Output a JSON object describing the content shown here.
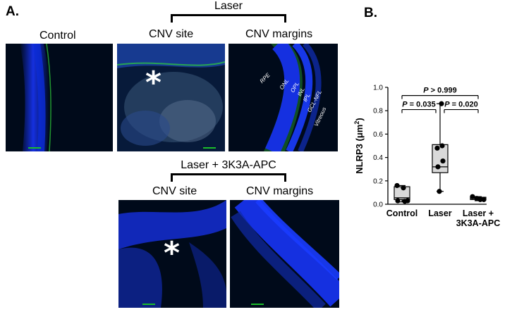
{
  "panel_a": {
    "letter": "A.",
    "control_label": "Control",
    "laser_group": {
      "title": "Laser",
      "site_label": "CNV site",
      "margins_label": "CNV margins",
      "star": "*",
      "layers": [
        "RPE",
        "ONL",
        "OPL",
        "INL",
        "IPL",
        "GCL-NFL",
        "Vitreous"
      ]
    },
    "apc_group": {
      "title": "Laser + 3K3A-APC",
      "site_label": "CNV site",
      "margins_label": "CNV margins",
      "star": "*"
    },
    "colors": {
      "nucleus_stain": "#1a3cff",
      "nlrp3_stain": "#2fd13a",
      "background": "#000a1a"
    }
  },
  "panel_b": {
    "letter": "B."
  },
  "chart_data": {
    "type": "box",
    "ylabel": "NLRP3 (μm",
    "ylabel_sup": "2",
    "ylabel_tail": ")",
    "ylim": [
      0,
      1.0
    ],
    "yticks": [
      "0.0",
      "0.2",
      "0.4",
      "0.6",
      "0.8",
      "1.0"
    ],
    "ytick_values": [
      0,
      0.2,
      0.4,
      0.6,
      0.8,
      1.0
    ],
    "categories": [
      "Control",
      "Laser",
      "Laser +\n3K3A-APC"
    ],
    "category_lines": [
      [
        "Control"
      ],
      [
        "Laser"
      ],
      [
        "Laser +",
        "3K3A-APC"
      ]
    ],
    "boxes": [
      {
        "min": 0.02,
        "q1": 0.04,
        "median": 0.055,
        "q3": 0.15,
        "max": 0.16
      },
      {
        "min": 0.11,
        "q1": 0.27,
        "median": 0.32,
        "q3": 0.51,
        "max": 0.86
      },
      {
        "min": 0.03,
        "q1": 0.04,
        "median": 0.05,
        "q3": 0.06,
        "max": 0.065
      }
    ],
    "points": [
      [
        0.16,
        0.14,
        0.03,
        0.025,
        0.03
      ],
      [
        0.86,
        0.5,
        0.48,
        0.37,
        0.32,
        0.11
      ],
      [
        0.065,
        0.05,
        0.04,
        0.04
      ]
    ],
    "box_fill": "#d9d9d9",
    "comparisons": [
      {
        "from": 0,
        "to": 2,
        "label": "P > 0.999",
        "y": 0.93
      },
      {
        "from": 0,
        "to": 1,
        "label": "P = 0.035",
        "y": 0.81
      },
      {
        "from": 1,
        "to": 2,
        "label": "P = 0.020",
        "y": 0.81
      }
    ]
  }
}
